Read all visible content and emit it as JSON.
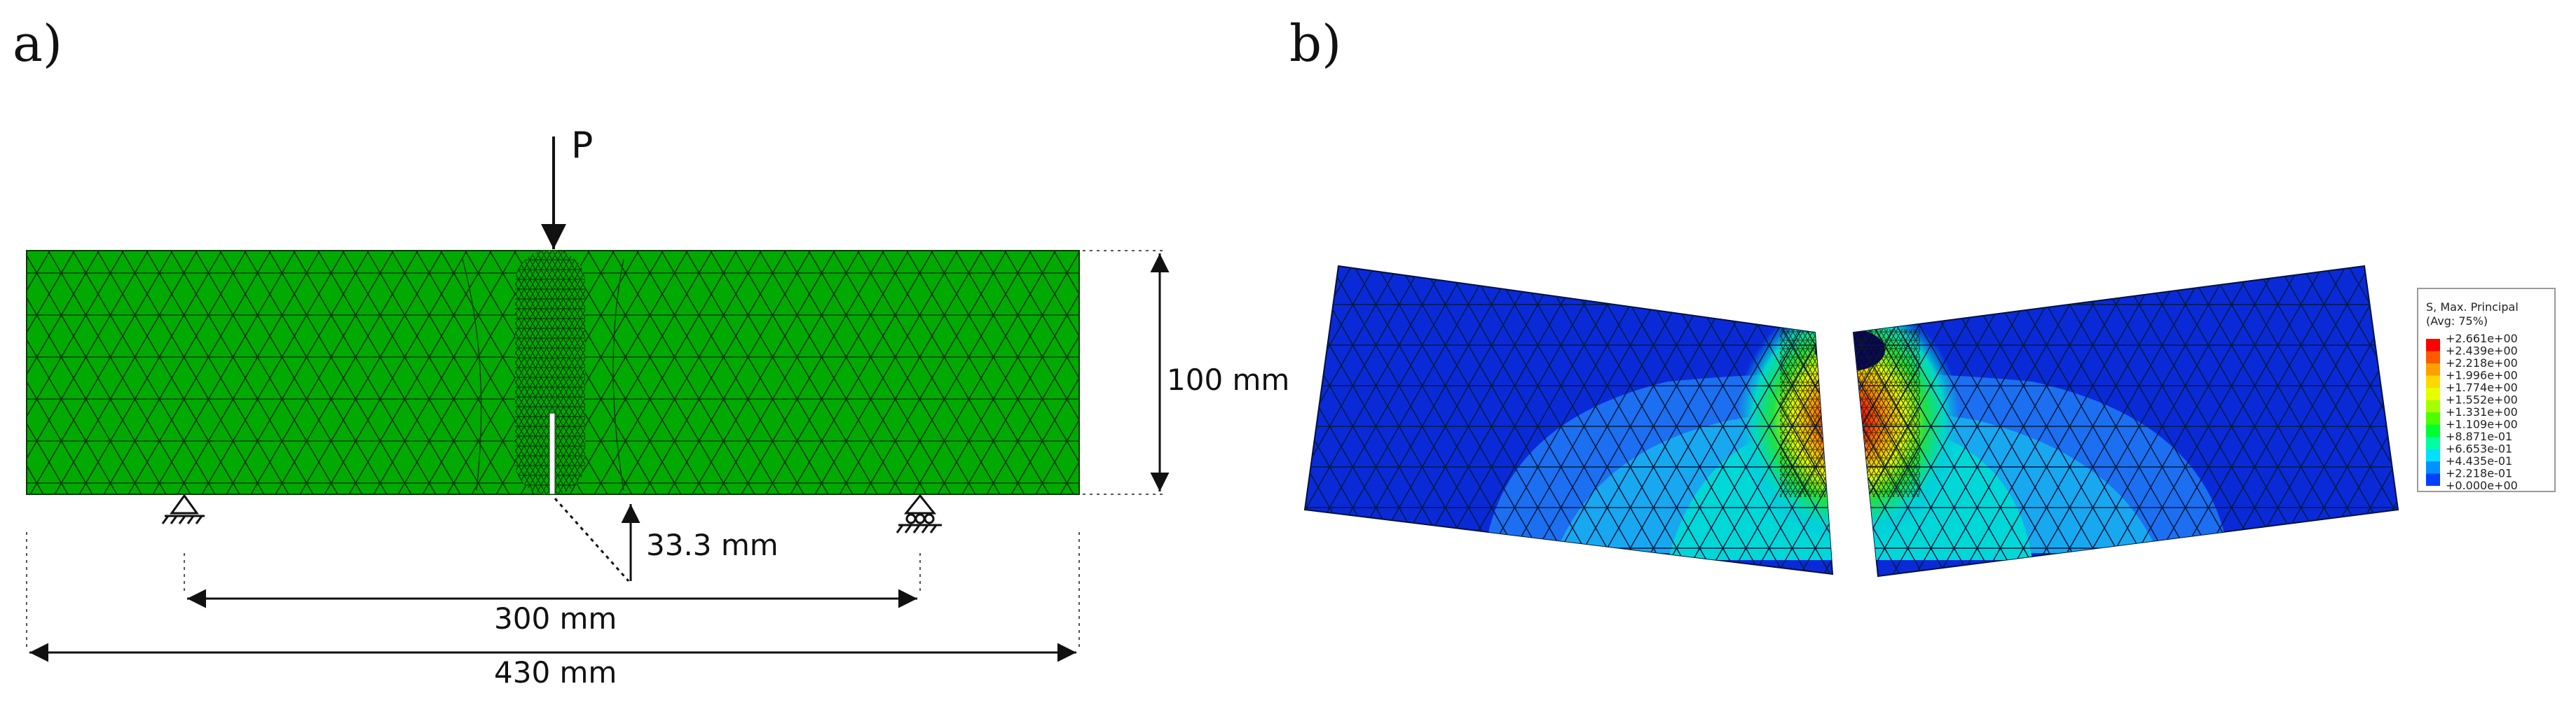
{
  "panel_labels": {
    "a": "a)",
    "b": "b)"
  },
  "panel_a": {
    "load_label": "P",
    "dim_height": "100 mm",
    "dim_notch": "33.3 mm",
    "dim_span": "300 mm",
    "dim_length": "430 mm",
    "beam_color": "#00aa00"
  },
  "panel_b": {
    "legend_title": "S, Max. Principal",
    "legend_subtitle": "(Avg: 75%)",
    "legend_values": [
      "+2.661e+00",
      "+2.439e+00",
      "+2.218e+00",
      "+1.996e+00",
      "+1.774e+00",
      "+1.552e+00",
      "+1.331e+00",
      "+1.109e+00",
      "+8.871e-01",
      "+6.653e-01",
      "+4.435e-01",
      "+2.218e-01",
      "+0.000e+00"
    ],
    "legend_colors": [
      "#ff0000",
      "#ff5a00",
      "#ffa000",
      "#ffd800",
      "#e6ff00",
      "#a6ff00",
      "#4cff00",
      "#00ff30",
      "#00ffa0",
      "#00e0ff",
      "#0090ff",
      "#0040ff",
      "#0000ff"
    ]
  }
}
